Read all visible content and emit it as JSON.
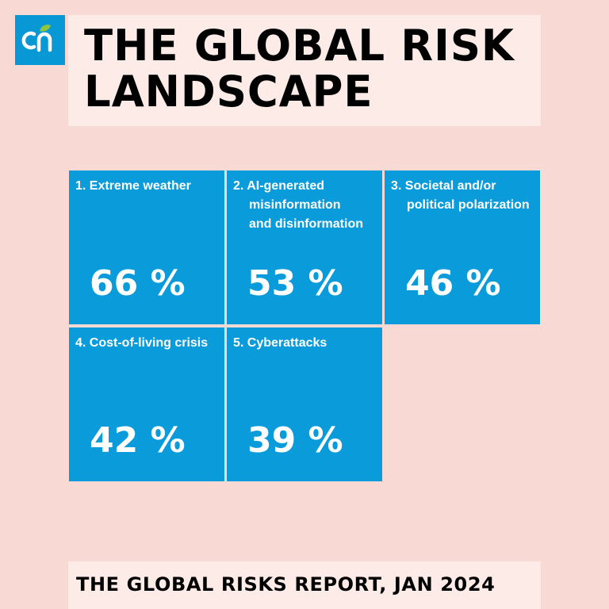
{
  "logo": {
    "icon": "cn-leaf-logo",
    "bg_color": "#0898d6",
    "leaf_color": "#8cc63f"
  },
  "header": {
    "title": "THE GLOBAL RISK\nLANDSCAPE"
  },
  "risks": [
    {
      "number": "1.",
      "label": "Extreme weather",
      "label_wrap": "",
      "value": "66 %"
    },
    {
      "number": "2.",
      "label": "AI-generated",
      "label_wrap": "misinformation\nand disinformation",
      "value": "53 %"
    },
    {
      "number": "3.",
      "label": "Societal and/or",
      "label_wrap": "political polarization",
      "value": "46 %"
    },
    {
      "number": "4.",
      "label": "Cost-of-living crisis",
      "label_wrap": "",
      "value": "42 %"
    },
    {
      "number": "5.",
      "label": "Cyberattacks",
      "label_wrap": "",
      "value": "39 %"
    }
  ],
  "footer": {
    "source": "THE GLOBAL RISKS REPORT, JAN 2024"
  },
  "colors": {
    "background": "#f8d9d3",
    "panel": "#fdebe8",
    "tile": "#0a9bdb"
  }
}
